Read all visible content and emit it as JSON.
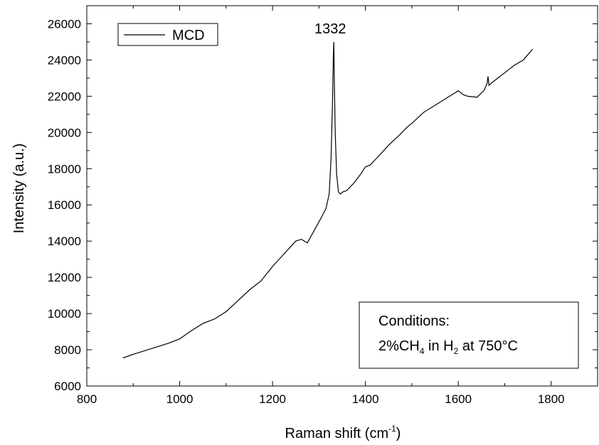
{
  "chart_data": {
    "type": "line",
    "xlabel": "Raman shift (cm",
    "xlabel_sup": "-1",
    "xlabel_end": ")",
    "ylabel": "Intensity (a.u.)",
    "xlim": [
      800,
      1900
    ],
    "ylim": [
      6000,
      27000
    ],
    "xticks": [
      800,
      1000,
      1200,
      1400,
      1600,
      1800
    ],
    "yticks": [
      6000,
      8000,
      10000,
      12000,
      14000,
      16000,
      18000,
      20000,
      22000,
      24000,
      26000
    ],
    "legend": {
      "label": "MCD",
      "position": "top-left"
    },
    "peak_label": {
      "text": "1332",
      "x": 1332,
      "y": 25000
    },
    "annotation": {
      "line1": "Conditions:",
      "line2_a": "2%CH",
      "line2_sub1": "4",
      "line2_b": " in H",
      "line2_sub2": "2",
      "line2_c": " at 750°C",
      "position": "bottom-right"
    },
    "grid": false,
    "series": [
      {
        "name": "MCD",
        "color": "#000000",
        "x": [
          878,
          900,
          925,
          950,
          975,
          1000,
          1025,
          1050,
          1075,
          1100,
          1125,
          1150,
          1175,
          1200,
          1225,
          1250,
          1262,
          1275,
          1290,
          1305,
          1315,
          1322,
          1326,
          1329,
          1331,
          1332,
          1333,
          1335,
          1338,
          1342,
          1346,
          1350,
          1360,
          1375,
          1390,
          1400,
          1410,
          1425,
          1450,
          1475,
          1490,
          1500,
          1525,
          1550,
          1575,
          1600,
          1610,
          1620,
          1640,
          1655,
          1662,
          1664,
          1666,
          1668,
          1675,
          1685,
          1700,
          1720,
          1740,
          1750,
          1760
        ],
        "y": [
          7550,
          7750,
          7950,
          8150,
          8350,
          8600,
          9050,
          9450,
          9700,
          10100,
          10700,
          11300,
          11800,
          12600,
          13300,
          14000,
          14100,
          13900,
          14600,
          15300,
          15800,
          16600,
          18500,
          21500,
          24300,
          25000,
          23000,
          20000,
          17700,
          16700,
          16600,
          16700,
          16800,
          17200,
          17700,
          18100,
          18200,
          18600,
          19300,
          19900,
          20300,
          20500,
          21100,
          21500,
          21900,
          22300,
          22100,
          22000,
          21950,
          22300,
          22700,
          23100,
          22600,
          22650,
          22800,
          23000,
          23300,
          23700,
          24000,
          24300,
          24600
        ]
      }
    ]
  }
}
